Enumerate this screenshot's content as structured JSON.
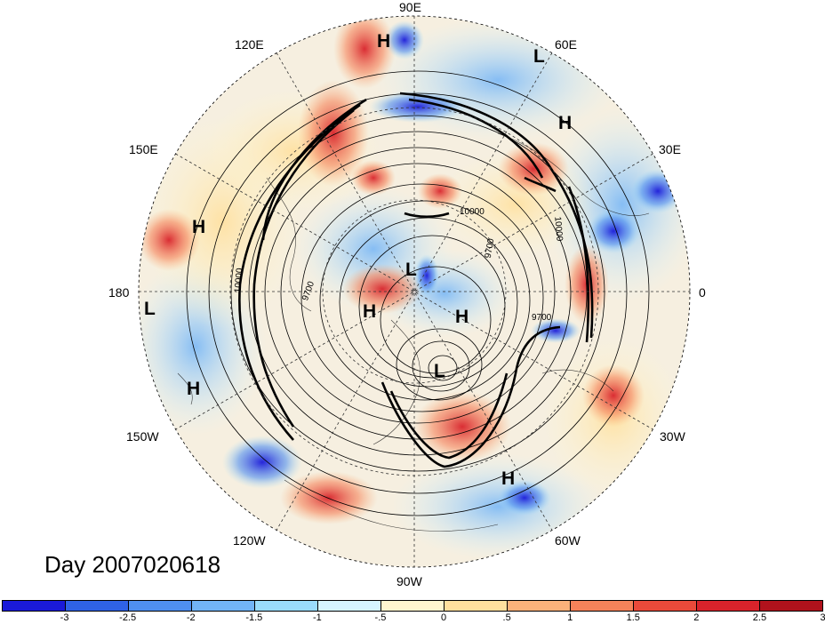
{
  "map": {
    "title": "Day 2007020618",
    "projection": "polar-stereographic-north",
    "longitude_labels": [
      "90E",
      "60E",
      "30E",
      "0",
      "30W",
      "60W",
      "90W",
      "120W",
      "150W",
      "180",
      "150E",
      "120E"
    ],
    "pressure_systems": [
      {
        "type": "H",
        "region": "north-asia-top"
      },
      {
        "type": "L",
        "region": "siberia"
      },
      {
        "type": "H",
        "region": "russia"
      },
      {
        "type": "H",
        "region": "north-pacific"
      },
      {
        "type": "L",
        "region": "dateline"
      },
      {
        "type": "H",
        "region": "central-pacific"
      },
      {
        "type": "L",
        "region": "pole"
      },
      {
        "type": "H",
        "region": "beaufort"
      },
      {
        "type": "H",
        "region": "greenland"
      },
      {
        "type": "L",
        "region": "baffin"
      },
      {
        "type": "H",
        "region": "north-atlantic"
      }
    ],
    "contour_labels": [
      "10000",
      "9700",
      "9700",
      "10000",
      "10000",
      "9700"
    ],
    "colors": {
      "positive_anomaly": "#d7301f",
      "negative_anomaly": "#2c56d8",
      "contour_line": "#000000"
    }
  },
  "colorbar": {
    "colors": [
      "#1a1ad9",
      "#2f62e6",
      "#4f8ff0",
      "#72b4f7",
      "#9adcfb",
      "#d6f5ff",
      "#fff6cf",
      "#ffe09e",
      "#fbb27a",
      "#f5835a",
      "#ea4a3a",
      "#d8232b",
      "#b0121c"
    ],
    "tick_labels": [
      "-3",
      "-2.5",
      "-2",
      "-1.5",
      "-1",
      "-.5",
      "0",
      ".5",
      "1",
      "1.5",
      "2",
      "2.5",
      "3"
    ]
  }
}
